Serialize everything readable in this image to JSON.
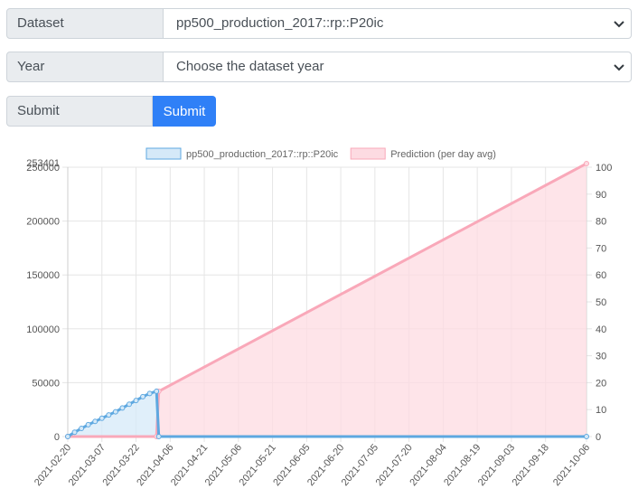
{
  "form": {
    "dataset": {
      "label": "Dataset",
      "value": "pp500_production_2017::rp::P20ic"
    },
    "year": {
      "label": "Year",
      "value": "Choose the dataset year"
    },
    "submit": {
      "label": "Submit",
      "button": "Submit",
      "color": "#2f80f7"
    }
  },
  "chart_data": {
    "type": "line",
    "legend_position": "top",
    "grid": true,
    "x_type": "date",
    "xlim": [
      "2021-02-20",
      "2021-10-06"
    ],
    "x_tick_labels": [
      "2021-02-20",
      "2021-03-07",
      "2021-03-22",
      "2021-04-06",
      "2021-04-21",
      "2021-05-06",
      "2021-05-21",
      "2021-06-05",
      "2021-06-20",
      "2021-07-05",
      "2021-07-20",
      "2021-08-04",
      "2021-08-19",
      "2021-09-03",
      "2021-09-18",
      "2021-10-06"
    ],
    "y_left": {
      "ylim": [
        0,
        250000
      ],
      "ticks": [
        0,
        50000,
        100000,
        150000,
        200000,
        250000
      ],
      "tick_labels": [
        "0",
        "50000",
        "100000",
        "150000",
        "200000",
        "250000"
      ],
      "top_overlap_label": "253401"
    },
    "y_right": {
      "ylim": [
        0,
        100
      ],
      "ticks": [
        0,
        10,
        20,
        30,
        40,
        50,
        60,
        70,
        80,
        90,
        100
      ],
      "tick_labels": [
        "0",
        "10",
        "20",
        "30",
        "40",
        "50",
        "60",
        "70",
        "80",
        "90",
        "100"
      ]
    },
    "series": [
      {
        "name": "pp500_production_2017::rp::P20ic",
        "axis": "left",
        "color": "#5ea8e0",
        "fill": "#d5e9f8",
        "points": [
          [
            "2021-02-20",
            0
          ],
          [
            "2021-02-23",
            4000
          ],
          [
            "2021-02-26",
            7500
          ],
          [
            "2021-03-01",
            11000
          ],
          [
            "2021-03-04",
            14000
          ],
          [
            "2021-03-07",
            17000
          ],
          [
            "2021-03-10",
            20000
          ],
          [
            "2021-03-13",
            23000
          ],
          [
            "2021-03-16",
            26500
          ],
          [
            "2021-03-19",
            30000
          ],
          [
            "2021-03-22",
            33500
          ],
          [
            "2021-03-25",
            37000
          ],
          [
            "2021-03-28",
            40000
          ],
          [
            "2021-03-31",
            42000
          ],
          [
            "2021-04-01",
            0
          ],
          [
            "2021-10-06",
            0
          ]
        ]
      },
      {
        "name": "Prediction (per day avg)",
        "axis": "left",
        "color": "#f9a8b9",
        "fill": "#fddbe2",
        "points": [
          [
            "2021-02-20",
            0
          ],
          [
            "2021-03-31",
            0
          ],
          [
            "2021-04-01",
            42000
          ],
          [
            "2021-10-06",
            253401
          ]
        ]
      }
    ]
  }
}
